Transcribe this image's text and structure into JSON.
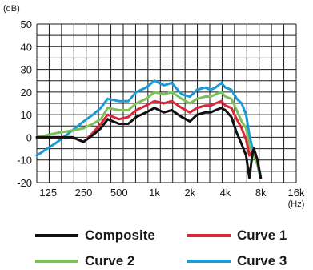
{
  "chart_data": {
    "type": "line",
    "x_unit": "(Hz)",
    "y_unit": "(dB)",
    "x_scale": "log",
    "xlim": [
      100,
      16000
    ],
    "ylim": [
      -20,
      50
    ],
    "grid": true,
    "legend_position": "bottom",
    "x_ticks": [
      {
        "value": 125,
        "label": "125"
      },
      {
        "value": 250,
        "label": "250"
      },
      {
        "value": 500,
        "label": "500"
      },
      {
        "value": 1000,
        "label": "1k"
      },
      {
        "value": 2000,
        "label": "2k"
      },
      {
        "value": 4000,
        "label": "4k"
      },
      {
        "value": 8000,
        "label": "8k"
      },
      {
        "value": 16000,
        "label": "16k"
      }
    ],
    "y_ticks": [
      50,
      40,
      30,
      20,
      10,
      0,
      -10,
      -20
    ],
    "series": [
      {
        "name": "Curve 3",
        "color": "#1a9ad6",
        "points": [
          [
            100,
            -8
          ],
          [
            150,
            -2
          ],
          [
            200,
            3
          ],
          [
            250,
            7
          ],
          [
            300,
            10
          ],
          [
            350,
            13
          ],
          [
            400,
            17
          ],
          [
            500,
            16
          ],
          [
            600,
            16
          ],
          [
            700,
            20
          ],
          [
            850,
            22
          ],
          [
            1000,
            25
          ],
          [
            1200,
            23
          ],
          [
            1400,
            24
          ],
          [
            1700,
            19
          ],
          [
            2000,
            18
          ],
          [
            2300,
            21
          ],
          [
            2700,
            22
          ],
          [
            3000,
            21
          ],
          [
            3300,
            22
          ],
          [
            3700,
            24
          ],
          [
            4000,
            22
          ],
          [
            4500,
            21
          ],
          [
            5000,
            17
          ],
          [
            5500,
            15
          ],
          [
            6000,
            10
          ],
          [
            6400,
            1
          ],
          [
            6800,
            -5
          ],
          [
            7000,
            -8
          ],
          [
            7500,
            -12
          ],
          [
            7800,
            -16
          ],
          [
            8000,
            -18
          ]
        ]
      },
      {
        "name": "Curve 2",
        "color": "#7cc05a",
        "points": [
          [
            100,
            0
          ],
          [
            150,
            2
          ],
          [
            200,
            3
          ],
          [
            250,
            4
          ],
          [
            300,
            6
          ],
          [
            350,
            8
          ],
          [
            400,
            13
          ],
          [
            500,
            12
          ],
          [
            600,
            12
          ],
          [
            700,
            15
          ],
          [
            850,
            17
          ],
          [
            1000,
            20
          ],
          [
            1200,
            19
          ],
          [
            1400,
            20
          ],
          [
            1700,
            17
          ],
          [
            2000,
            15
          ],
          [
            2300,
            17
          ],
          [
            2700,
            18
          ],
          [
            3000,
            18
          ],
          [
            3300,
            19
          ],
          [
            3700,
            20
          ],
          [
            4000,
            18
          ],
          [
            4500,
            17
          ],
          [
            5000,
            12
          ],
          [
            5500,
            7
          ],
          [
            6000,
            4
          ],
          [
            6400,
            -4
          ],
          [
            6800,
            -7
          ],
          [
            7000,
            -8
          ],
          [
            7500,
            -12
          ],
          [
            8000,
            -17
          ]
        ]
      },
      {
        "name": "Curve 1",
        "color": "#d9263a",
        "points": [
          [
            100,
            0
          ],
          [
            150,
            0
          ],
          [
            200,
            0
          ],
          [
            250,
            -2
          ],
          [
            300,
            2
          ],
          [
            350,
            6
          ],
          [
            400,
            10
          ],
          [
            500,
            8
          ],
          [
            600,
            9
          ],
          [
            700,
            12
          ],
          [
            850,
            14
          ],
          [
            1000,
            16
          ],
          [
            1200,
            15
          ],
          [
            1400,
            16
          ],
          [
            1700,
            13
          ],
          [
            2000,
            11
          ],
          [
            2300,
            13
          ],
          [
            2700,
            14
          ],
          [
            3000,
            14
          ],
          [
            3300,
            15
          ],
          [
            3700,
            16
          ],
          [
            4000,
            14
          ],
          [
            4500,
            13
          ],
          [
            5000,
            8
          ],
          [
            5500,
            4
          ],
          [
            6000,
            -1
          ],
          [
            6400,
            -8
          ],
          [
            6800,
            -6
          ],
          [
            7000,
            -6
          ],
          [
            7500,
            -10
          ],
          [
            8000,
            -18
          ]
        ]
      },
      {
        "name": "Composite",
        "color": "#111111",
        "points": [
          [
            100,
            0
          ],
          [
            150,
            0
          ],
          [
            200,
            0
          ],
          [
            250,
            -2
          ],
          [
            300,
            1
          ],
          [
            350,
            4
          ],
          [
            400,
            8
          ],
          [
            500,
            6
          ],
          [
            600,
            6
          ],
          [
            700,
            9
          ],
          [
            850,
            11
          ],
          [
            1000,
            13
          ],
          [
            1200,
            11
          ],
          [
            1400,
            12
          ],
          [
            1700,
            9
          ],
          [
            2000,
            7
          ],
          [
            2300,
            10
          ],
          [
            2700,
            11
          ],
          [
            3000,
            11
          ],
          [
            3300,
            12
          ],
          [
            3700,
            13
          ],
          [
            4000,
            12
          ],
          [
            4500,
            9
          ],
          [
            5000,
            2
          ],
          [
            5500,
            -3
          ],
          [
            6000,
            -8
          ],
          [
            6400,
            -18
          ],
          [
            6800,
            -7
          ],
          [
            7000,
            -5
          ],
          [
            7500,
            -10
          ],
          [
            8000,
            -18
          ]
        ]
      }
    ],
    "legend": [
      {
        "name": "Composite",
        "color": "#111111"
      },
      {
        "name": "Curve 1",
        "color": "#d9263a"
      },
      {
        "name": "Curve 2",
        "color": "#7cc05a"
      },
      {
        "name": "Curve 3",
        "color": "#1a9ad6"
      }
    ]
  }
}
